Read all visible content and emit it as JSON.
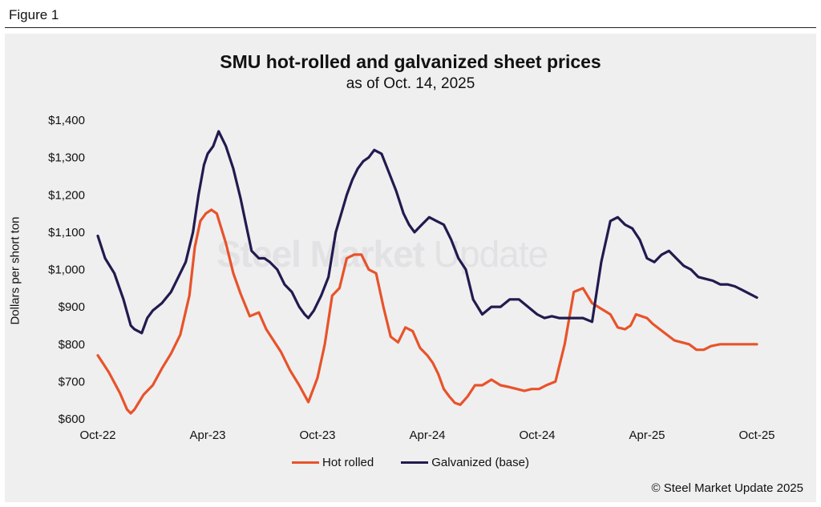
{
  "figure_label": "Figure 1",
  "colors": {
    "hot_rolled": "#e8532a",
    "galvanized": "#211b4e",
    "panel": "#efeff0"
  },
  "watermark": {
    "bold": "Steel Market",
    "light": "Update"
  },
  "legend": {
    "hot_rolled": "Hot rolled",
    "galvanized": "Galvanized (base)"
  },
  "copyright": "© Steel Market Update 2025",
  "chart_data": {
    "type": "line",
    "title": "SMU hot-rolled and galvanized sheet prices",
    "subtitle": "as of Oct. 14, 2025",
    "xlabel": "",
    "ylabel": "Dollars per short ton",
    "ylim": [
      600,
      1400
    ],
    "yticks": [
      600,
      700,
      800,
      900,
      1000,
      1100,
      1200,
      1300,
      1400
    ],
    "ytick_labels": [
      "$600",
      "$700",
      "$800",
      "$900",
      "$1,000",
      "$1,100",
      "$1,200",
      "$1,300",
      "$1,400"
    ],
    "xlim": [
      0,
      36
    ],
    "x_tick_positions": [
      0,
      6,
      12,
      18,
      24,
      30,
      36
    ],
    "x_tick_labels": [
      "Oct-22",
      "Apr-23",
      "Oct-23",
      "Apr-24",
      "Oct-24",
      "Apr-25",
      "Oct-25"
    ],
    "x_unit": "months since Oct-22",
    "series": [
      {
        "name": "Hot rolled",
        "color": "#e8532a",
        "x": [
          0,
          0.6,
          1.2,
          1.6,
          1.8,
          2.0,
          2.5,
          3.0,
          3.5,
          4.0,
          4.5,
          5.0,
          5.3,
          5.6,
          5.9,
          6.2,
          6.5,
          7.0,
          7.4,
          7.8,
          8.3,
          8.8,
          9.2,
          9.6,
          10.0,
          10.5,
          11.0,
          11.5,
          12.0,
          12.4,
          12.8,
          13.2,
          13.6,
          14.0,
          14.4,
          14.8,
          15.2,
          15.6,
          16.0,
          16.4,
          16.8,
          17.2,
          17.6,
          18.0,
          18.3,
          18.6,
          18.9,
          19.2,
          19.5,
          19.8,
          20.2,
          20.6,
          21.0,
          21.5,
          22.0,
          22.5,
          22.9,
          23.3,
          23.7,
          24.1,
          24.5,
          25.0,
          25.5,
          26.0,
          26.5,
          27.0,
          27.5,
          28.0,
          28.4,
          28.8,
          29.1,
          29.4,
          29.7,
          30.0,
          30.3,
          30.7,
          31.1,
          31.5,
          31.9,
          32.3,
          32.7,
          33.1,
          33.5,
          34.0,
          34.5,
          35.0,
          35.5,
          36.0
        ],
        "values": [
          770,
          725,
          670,
          625,
          615,
          625,
          665,
          690,
          735,
          775,
          825,
          930,
          1060,
          1130,
          1150,
          1160,
          1150,
          1070,
          990,
          935,
          875,
          885,
          840,
          810,
          780,
          730,
          690,
          645,
          710,
          800,
          930,
          950,
          1030,
          1040,
          1040,
          1000,
          990,
          900,
          820,
          805,
          845,
          835,
          790,
          770,
          750,
          720,
          680,
          660,
          643,
          638,
          660,
          690,
          690,
          705,
          690,
          685,
          680,
          675,
          680,
          680,
          690,
          700,
          800,
          940,
          950,
          910,
          895,
          880,
          845,
          840,
          850,
          880,
          875,
          870,
          855,
          840,
          825,
          810,
          805,
          800,
          785,
          785,
          795,
          800,
          800,
          800,
          800,
          800
        ]
      },
      {
        "name": "Galvanized (base)",
        "color": "#211b4e",
        "x": [
          0,
          0.4,
          0.9,
          1.4,
          1.8,
          2.0,
          2.4,
          2.7,
          3.0,
          3.5,
          4.0,
          4.4,
          4.8,
          5.2,
          5.5,
          5.8,
          6.0,
          6.3,
          6.6,
          7.0,
          7.4,
          7.8,
          8.1,
          8.4,
          8.8,
          9.1,
          9.4,
          9.8,
          10.2,
          10.6,
          11.0,
          11.3,
          11.5,
          11.8,
          12.2,
          12.6,
          13.0,
          13.3,
          13.6,
          13.9,
          14.2,
          14.5,
          14.8,
          15.1,
          15.5,
          15.9,
          16.3,
          16.7,
          17.0,
          17.3,
          17.7,
          18.1,
          18.5,
          18.9,
          19.3,
          19.7,
          20.1,
          20.5,
          21.0,
          21.5,
          22.0,
          22.5,
          23.0,
          23.5,
          24.0,
          24.4,
          24.8,
          25.2,
          25.6,
          26.0,
          26.5,
          27.0,
          27.5,
          28.0,
          28.4,
          28.8,
          29.2,
          29.6,
          30.0,
          30.4,
          30.8,
          31.2,
          31.6,
          32.0,
          32.4,
          32.8,
          33.2,
          33.6,
          34.0,
          34.4,
          34.8,
          35.2,
          35.6,
          36.0
        ],
        "values": [
          1090,
          1030,
          990,
          920,
          850,
          840,
          830,
          870,
          890,
          910,
          940,
          980,
          1020,
          1100,
          1200,
          1280,
          1310,
          1330,
          1370,
          1330,
          1270,
          1190,
          1120,
          1050,
          1030,
          1030,
          1020,
          1000,
          960,
          940,
          900,
          880,
          870,
          890,
          930,
          980,
          1100,
          1150,
          1200,
          1240,
          1270,
          1290,
          1300,
          1320,
          1310,
          1260,
          1210,
          1150,
          1120,
          1100,
          1120,
          1140,
          1130,
          1120,
          1080,
          1030,
          1000,
          920,
          880,
          900,
          900,
          920,
          920,
          900,
          880,
          870,
          875,
          870,
          870,
          870,
          870,
          860,
          1020,
          1130,
          1140,
          1120,
          1110,
          1080,
          1030,
          1020,
          1040,
          1050,
          1030,
          1010,
          1000,
          980,
          975,
          970,
          960,
          960,
          955,
          945,
          935,
          925
        ]
      }
    ]
  }
}
